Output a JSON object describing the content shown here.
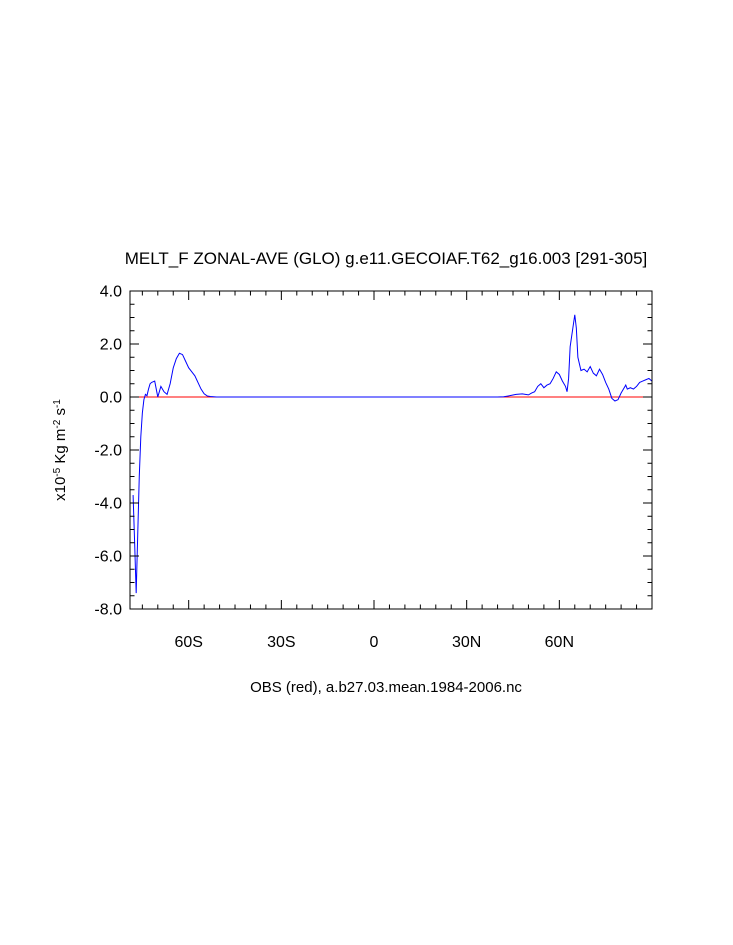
{
  "chart_data": {
    "type": "line",
    "title": "MELT_F ZONAL-AVE (GLO) g.e11.GECOIAF.T62_g16.003 [291-305]",
    "subtitle": "OBS (red), a.b27.03.mean.1984-2006.nc",
    "xlabel": "",
    "ylabel": {
      "prefix": "x10",
      "exp1": "-5",
      "unit1": " Kg m",
      "exp2": "-2",
      "unit2": " s",
      "exp3": "-1"
    },
    "xlim": [
      -79,
      90
    ],
    "ylim": [
      -8.0,
      4.0
    ],
    "x_ticks": [
      -60,
      -30,
      0,
      30,
      60
    ],
    "x_tick_labels": [
      "60S",
      "30S",
      "0",
      "30N",
      "60N"
    ],
    "y_ticks": [
      -8.0,
      -6.0,
      -4.0,
      -2.0,
      0.0,
      2.0,
      4.0
    ],
    "y_tick_labels": [
      "-8.0",
      "-6.0",
      "-4.0",
      "-2.0",
      "0.0",
      "2.0",
      "4.0"
    ],
    "grid": false,
    "series": [
      {
        "name": "g.e11.GECOIAF.T62_g16.003 [291-305]",
        "color": "#0000ff",
        "x": [
          -78,
          -77.5,
          -77,
          -76.5,
          -76,
          -75.5,
          -75,
          -74.5,
          -74,
          -73.5,
          -73,
          -72.5,
          -72,
          -71,
          -70,
          -69,
          -68,
          -67,
          -66,
          -65,
          -64,
          -63,
          -62,
          -61,
          -60,
          -59,
          -58,
          -57,
          -56,
          -55,
          -54,
          -53,
          -52,
          -51,
          -50,
          -45,
          -40,
          -30,
          -20,
          0,
          20,
          30,
          35,
          40,
          42,
          44,
          46,
          48,
          50,
          51,
          52,
          53,
          54,
          55,
          56,
          57,
          58,
          59,
          60,
          61,
          62,
          62.5,
          63,
          63.5,
          64,
          65,
          65.5,
          66,
          67,
          68,
          69,
          70,
          71,
          72,
          73,
          74,
          75,
          76,
          77,
          78,
          79,
          80,
          80.5,
          81,
          81.5,
          82,
          83,
          84,
          85,
          86,
          87,
          88,
          89,
          90
        ],
        "y": [
          -3.7,
          -5.5,
          -7.4,
          -5.2,
          -3.0,
          -1.5,
          -0.6,
          -0.1,
          0.1,
          0.05,
          0.3,
          0.5,
          0.55,
          0.6,
          0.0,
          0.4,
          0.2,
          0.1,
          0.5,
          1.1,
          1.45,
          1.65,
          1.6,
          1.35,
          1.1,
          0.95,
          0.8,
          0.55,
          0.3,
          0.12,
          0.04,
          0.02,
          0.01,
          0.0,
          0.0,
          0.0,
          0.0,
          0.0,
          0.0,
          0.0,
          0.0,
          0.0,
          0.0,
          0.0,
          0.01,
          0.05,
          0.1,
          0.12,
          0.08,
          0.15,
          0.2,
          0.4,
          0.5,
          0.35,
          0.45,
          0.5,
          0.7,
          0.95,
          0.85,
          0.6,
          0.4,
          0.2,
          0.7,
          1.9,
          2.3,
          3.1,
          2.6,
          1.5,
          1.0,
          1.05,
          0.95,
          1.15,
          0.9,
          0.8,
          1.05,
          0.85,
          0.55,
          0.3,
          -0.05,
          -0.15,
          -0.1,
          0.15,
          0.25,
          0.35,
          0.45,
          0.3,
          0.35,
          0.3,
          0.4,
          0.55,
          0.6,
          0.65,
          0.7,
          0.6
        ]
      },
      {
        "name": "OBS (red), a.b27.03.mean.1984-2006.nc",
        "color": "#ff0000",
        "x": [
          -79,
          90
        ],
        "y": [
          0.0,
          0.0
        ]
      }
    ]
  }
}
